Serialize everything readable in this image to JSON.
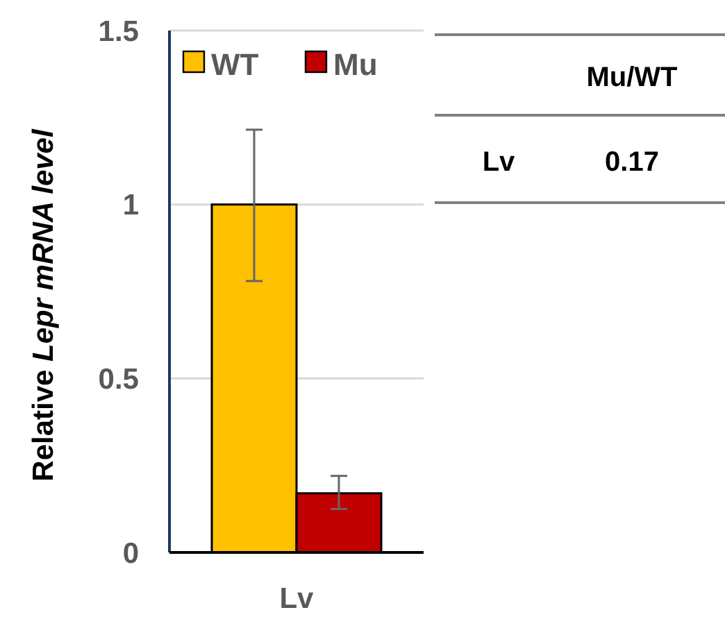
{
  "chart_data": [
    {
      "type": "bar",
      "ylabel": "Relative Lepr mRNA level",
      "categories": [
        "Lv"
      ],
      "series": [
        {
          "name": "WT",
          "color": "#ffc000",
          "values": [
            1
          ],
          "errors": [
            [
              0.78,
              1.215
            ]
          ]
        },
        {
          "name": "Mu",
          "color": "#c00000",
          "values": [
            0.17
          ],
          "errors": [
            [
              0.125,
              0.22
            ]
          ]
        }
      ],
      "ylim": [
        0,
        1.5
      ],
      "yticks": [
        0,
        0.5,
        1,
        1.5
      ],
      "grid": "y",
      "legend": "top left"
    },
    {
      "type": "other",
      "annotations": [
        "Mu/WT",
        "Lv",
        "0.17"
      ]
    }
  ]
}
